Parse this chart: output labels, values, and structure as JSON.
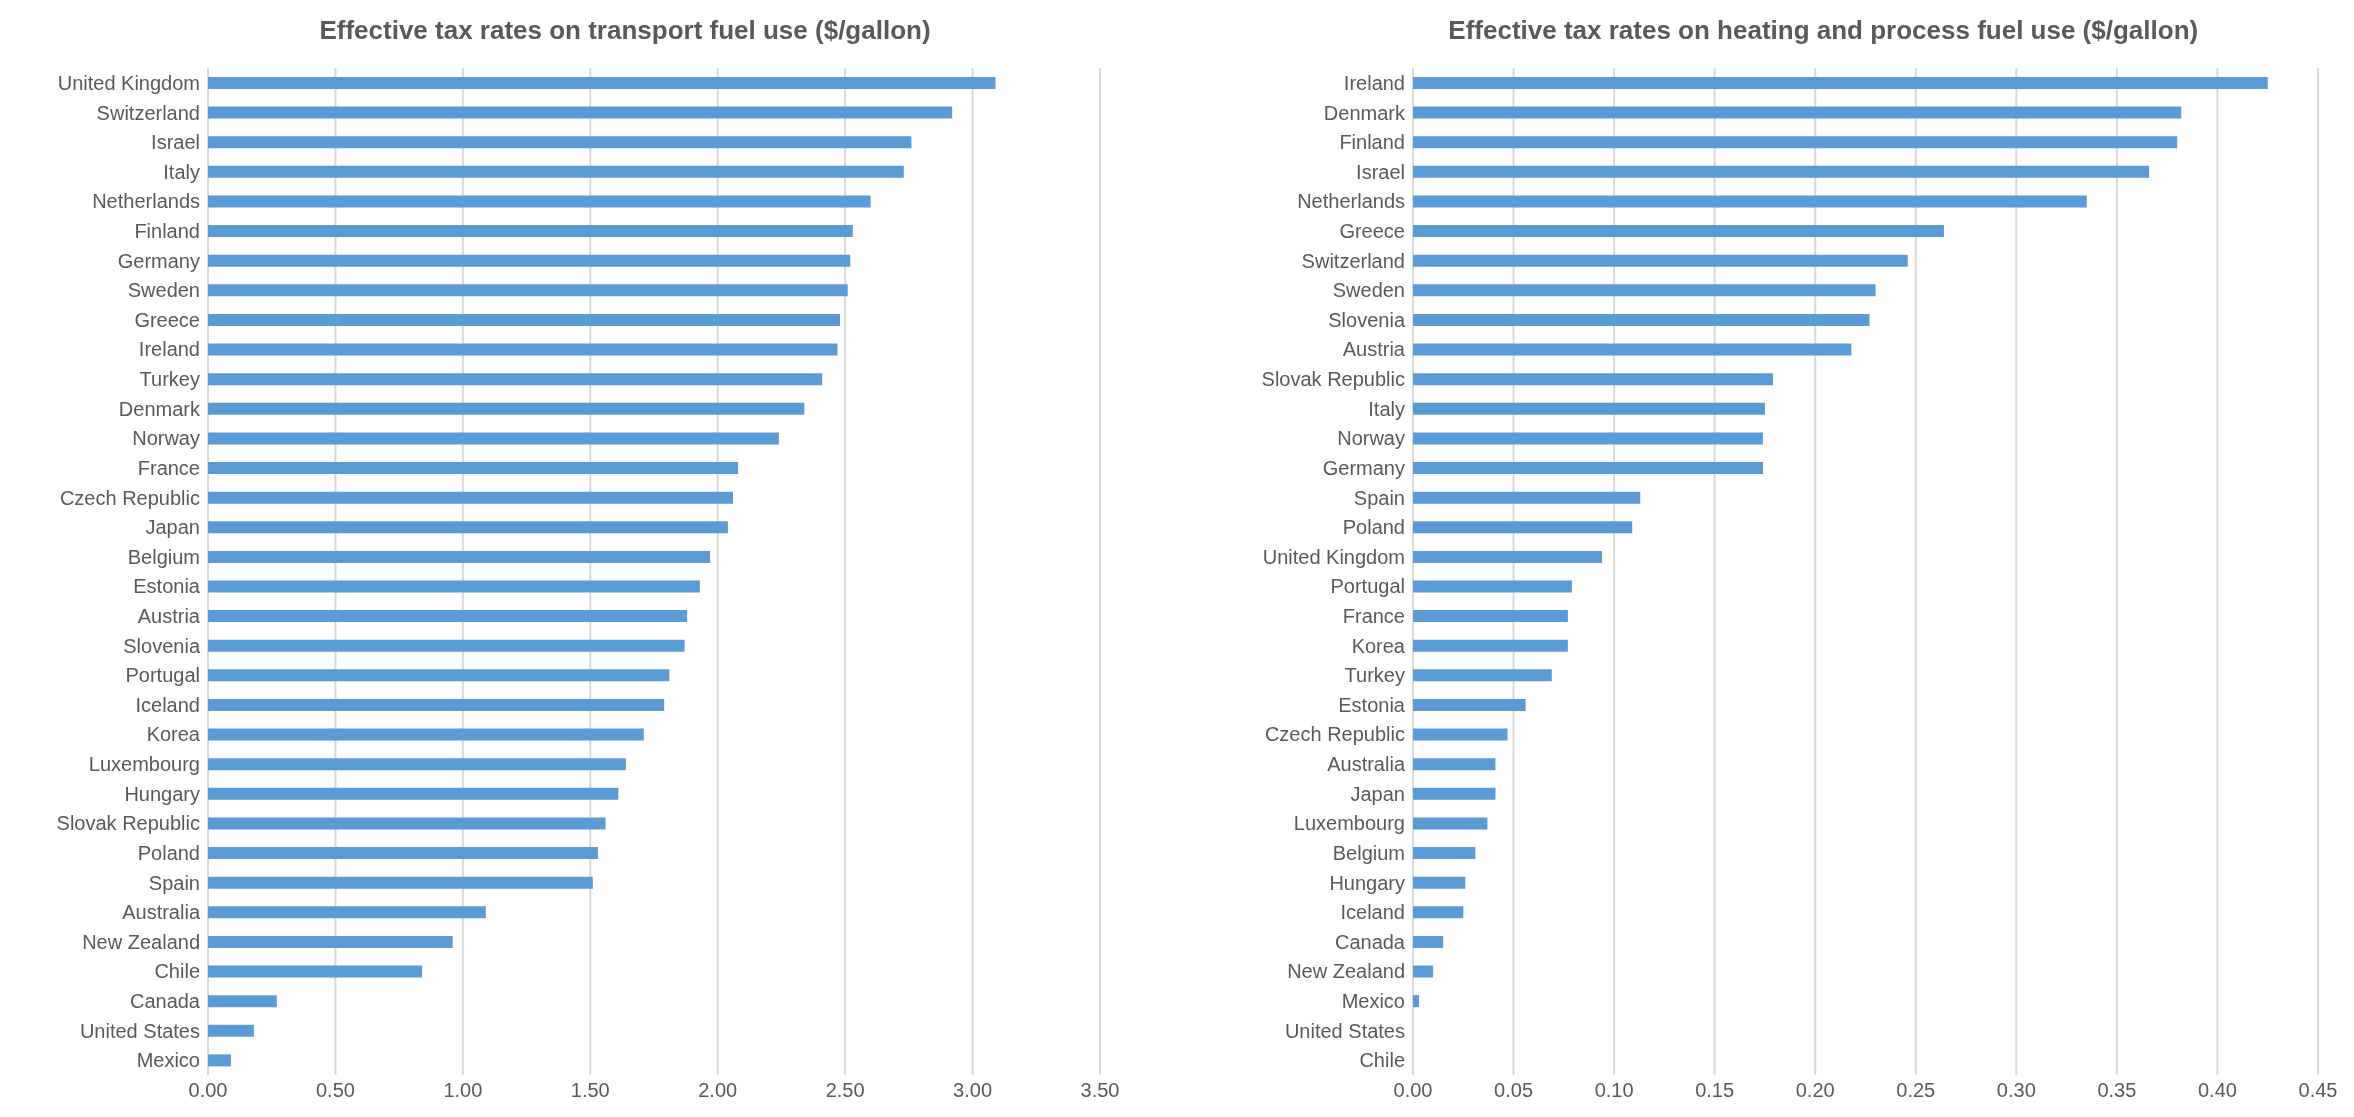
{
  "chart_data": [
    {
      "type": "bar",
      "orientation": "horizontal",
      "title": "Effective tax rates on transport fuel use ($/gallon)",
      "categories": [
        "United Kingdom",
        "Switzerland",
        "Israel",
        "Italy",
        "Netherlands",
        "Finland",
        "Germany",
        "Sweden",
        "Greece",
        "Ireland",
        "Turkey",
        "Denmark",
        "Norway",
        "France",
        "Czech Republic",
        "Japan",
        "Belgium",
        "Estonia",
        "Austria",
        "Slovenia",
        "Portugal",
        "Iceland",
        "Korea",
        "Luxembourg",
        "Hungary",
        "Slovak Republic",
        "Poland",
        "Spain",
        "Australia",
        "New Zealand",
        "Chile",
        "Canada",
        "United States",
        "Mexico"
      ],
      "values": [
        3.09,
        2.92,
        2.76,
        2.73,
        2.6,
        2.53,
        2.52,
        2.51,
        2.48,
        2.47,
        2.41,
        2.34,
        2.24,
        2.08,
        2.06,
        2.04,
        1.97,
        1.93,
        1.88,
        1.87,
        1.81,
        1.79,
        1.71,
        1.64,
        1.61,
        1.56,
        1.53,
        1.51,
        1.09,
        0.96,
        0.84,
        0.27,
        0.18,
        0.09
      ],
      "color": "#5b9bd5",
      "xlim": [
        0,
        3.5
      ],
      "xticks": [
        {
          "value": 0,
          "label": "0.00"
        },
        {
          "value": 0.5,
          "label": "0.50"
        },
        {
          "value": 1,
          "label": "1.00"
        },
        {
          "value": 1.5,
          "label": "1.50"
        },
        {
          "value": 2,
          "label": "2.00"
        },
        {
          "value": 2.5,
          "label": "2.50"
        },
        {
          "value": 3,
          "label": "3.00"
        },
        {
          "value": 3.5,
          "label": "3.50"
        }
      ],
      "grid": "x"
    },
    {
      "type": "bar",
      "orientation": "horizontal",
      "title": "Effective tax rates on heating and process fuel use ($/gallon)",
      "categories": [
        "Ireland",
        "Denmark",
        "Finland",
        "Israel",
        "Netherlands",
        "Greece",
        "Switzerland",
        "Sweden",
        "Slovenia",
        "Austria",
        "Slovak Republic",
        "Italy",
        "Norway",
        "Germany",
        "Spain",
        "Poland",
        "United Kingdom",
        "Portugal",
        "France",
        "Korea",
        "Turkey",
        "Estonia",
        "Czech Republic",
        "Australia",
        "Japan",
        "Luxembourg",
        "Belgium",
        "Hungary",
        "Iceland",
        "Canada",
        "New Zealand",
        "Mexico",
        "United States",
        "Chile"
      ],
      "values": [
        0.425,
        0.382,
        0.38,
        0.366,
        0.335,
        0.264,
        0.246,
        0.23,
        0.227,
        0.218,
        0.179,
        0.175,
        0.174,
        0.174,
        0.113,
        0.109,
        0.094,
        0.079,
        0.077,
        0.077,
        0.069,
        0.056,
        0.047,
        0.041,
        0.041,
        0.037,
        0.031,
        0.026,
        0.025,
        0.015,
        0.01,
        0.003,
        0,
        0
      ],
      "color": "#5b9bd5",
      "xlim": [
        0,
        0.45
      ],
      "xticks": [
        {
          "value": 0,
          "label": "0.00"
        },
        {
          "value": 0.05,
          "label": "0.05"
        },
        {
          "value": 0.1,
          "label": "0.10"
        },
        {
          "value": 0.15,
          "label": "0.15"
        },
        {
          "value": 0.2,
          "label": "0.20"
        },
        {
          "value": 0.25,
          "label": "0.25"
        },
        {
          "value": 0.3,
          "label": "0.30"
        },
        {
          "value": 0.35,
          "label": "0.35"
        },
        {
          "value": 0.4,
          "label": "0.40"
        },
        {
          "value": 0.45,
          "label": "0.45"
        }
      ],
      "grid": "x"
    }
  ]
}
